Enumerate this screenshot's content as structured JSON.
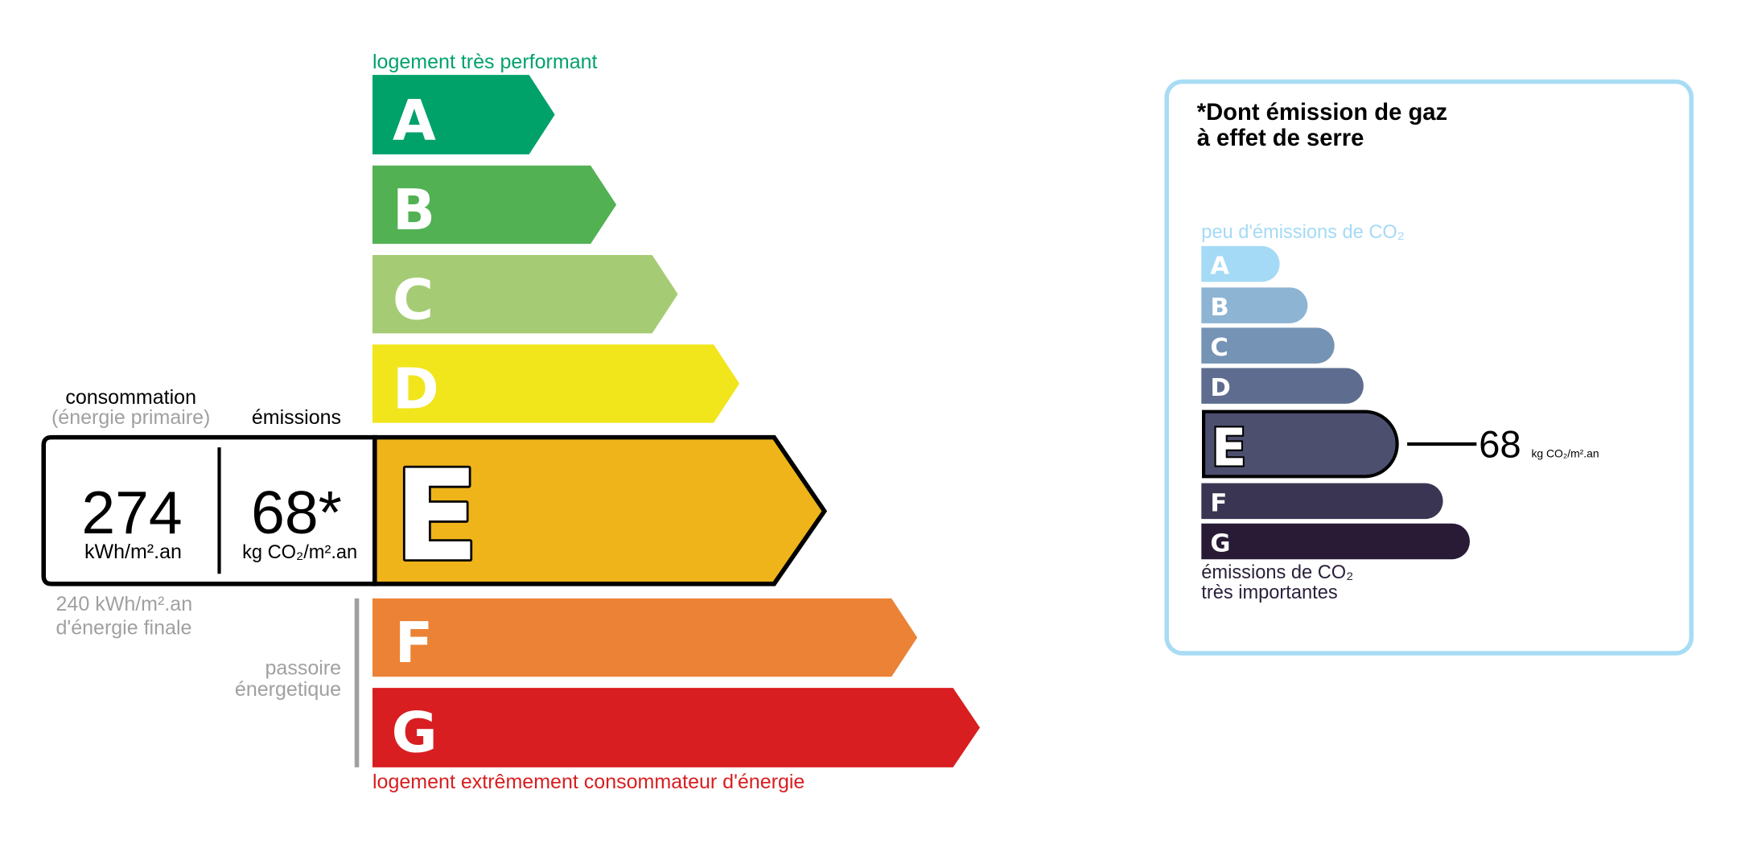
{
  "energy": {
    "top_label": "logement très performant",
    "bottom_label": "logement extrêmement consommateur d'énergie",
    "classes": [
      {
        "letter": "A",
        "color": "#00a26a"
      },
      {
        "letter": "B",
        "color": "#52b153"
      },
      {
        "letter": "C",
        "color": "#a5cc74"
      },
      {
        "letter": "D",
        "color": "#f1e51c"
      },
      {
        "letter": "E",
        "color": "#efb41a"
      },
      {
        "letter": "F",
        "color": "#eb8235"
      },
      {
        "letter": "G",
        "color": "#d81e20"
      }
    ],
    "current_class": "E",
    "consumption_label": "consommation",
    "consumption_sublabel": "(énergie primaire)",
    "emissions_label": "émissions",
    "consumption_value": "274",
    "consumption_unit": "kWh/m².an",
    "emissions_value": "68*",
    "emissions_unit": "kg CO₂/m².an",
    "final_energy_line1": "240 kWh/m².an",
    "final_energy_line2": "d'énergie finale",
    "passoire_line1": "passoire",
    "passoire_line2": "énergetique"
  },
  "ges": {
    "title_line1": "*Dont émission de gaz",
    "title_line2": "à effet de serre",
    "top_label": "peu d'émissions de CO₂",
    "bottom_line1": "émissions de CO₂",
    "bottom_line2": "très importantes",
    "classes": [
      {
        "letter": "A",
        "color": "#a4daf6"
      },
      {
        "letter": "B",
        "color": "#8db4d3"
      },
      {
        "letter": "C",
        "color": "#7593b4"
      },
      {
        "letter": "D",
        "color": "#5e6d8f"
      },
      {
        "letter": "E",
        "color": "#4d4f6f"
      },
      {
        "letter": "F",
        "color": "#3a3552"
      },
      {
        "letter": "G",
        "color": "#291b36"
      }
    ],
    "current_class": "E",
    "value": "68",
    "unit": "kg CO₂/m².an",
    "border_color": "#a8dcf5"
  }
}
